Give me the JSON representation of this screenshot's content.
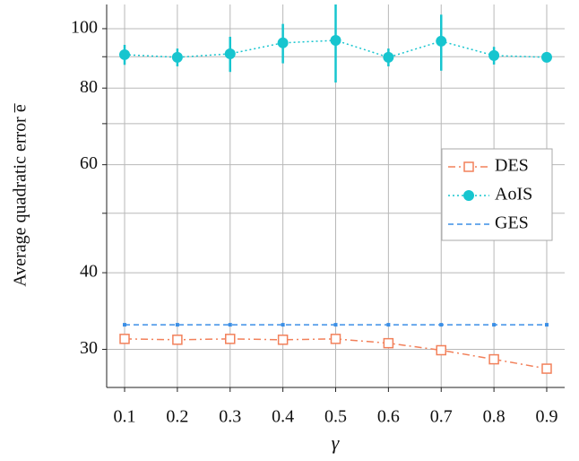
{
  "chart_data": {
    "type": "line",
    "x_label": "γ",
    "y_label": "Average quadratic error e̅",
    "x": [
      0.1,
      0.2,
      0.3,
      0.4,
      0.5,
      0.6,
      0.7,
      0.8,
      0.9
    ],
    "xlim": [
      0.066,
      0.934
    ],
    "xticks": [
      0.1,
      0.2,
      0.3,
      0.4,
      0.5,
      0.6,
      0.7,
      0.8,
      0.9
    ],
    "ylim": [
      26,
      109.5
    ],
    "yticks": [
      30,
      40,
      60,
      80,
      100
    ],
    "minor_yticks": [
      50,
      70,
      90
    ],
    "log_y": true,
    "grid": true,
    "legend": "right",
    "series": [
      {
        "name": "DES",
        "color": "#f2805a",
        "linestyle": "dashdot",
        "marker": "square-open",
        "values": [
          31.2,
          31.1,
          31.2,
          31.1,
          31.2,
          30.7,
          29.9,
          28.9,
          27.9
        ]
      },
      {
        "name": "AoIS",
        "color": "#17c5cf",
        "linestyle": "dotted",
        "marker": "circle",
        "values": [
          90.7,
          89.8,
          91.0,
          94.8,
          95.7,
          89.8,
          95.4,
          90.4,
          89.8
        ],
        "errors": [
          3.4,
          3.0,
          6.0,
          7.0,
          14.0,
          3.0,
          10.0,
          3.0,
          1.0
        ]
      },
      {
        "name": "GES",
        "color": "#3b8fe6",
        "linestyle": "dashed",
        "marker": "dot",
        "values": [
          32.9,
          32.9,
          32.9,
          32.9,
          32.9,
          32.9,
          32.9,
          32.9,
          32.9
        ]
      }
    ]
  }
}
